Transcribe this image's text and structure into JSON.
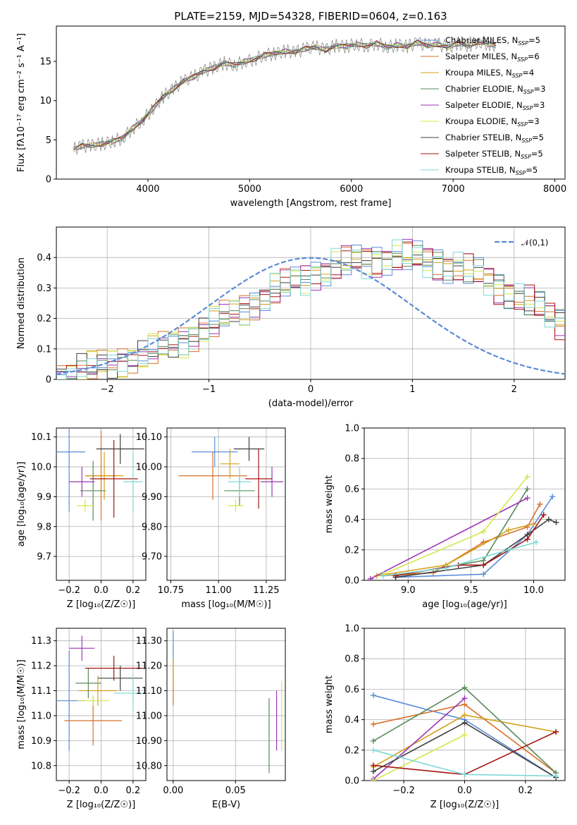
{
  "title": "PLATE=2159, MJD=54328, FIBERID=0604, z=0.163",
  "models": [
    {
      "name": "Chabrier MILES",
      "nssp": "5",
      "color": "#5b8bd9"
    },
    {
      "name": "Salpeter MILES",
      "nssp": "6",
      "color": "#d8702a"
    },
    {
      "name": "Kroupa MILES",
      "nssp": "4",
      "color": "#d4a017"
    },
    {
      "name": "Chabrier ELODIE",
      "nssp": "3",
      "color": "#5a8a5a"
    },
    {
      "name": "Salpeter ELODIE",
      "nssp": "3",
      "color": "#9c36b5"
    },
    {
      "name": "Kroupa ELODIE",
      "nssp": "3",
      "color": "#d4e84a"
    },
    {
      "name": "Chabrier STELIB",
      "nssp": "5",
      "color": "#404040"
    },
    {
      "name": "Salpeter STELIB",
      "nssp": "5",
      "color": "#a31515"
    },
    {
      "name": "Kroupa STELIB",
      "nssp": "5",
      "color": "#7fd8d8"
    }
  ],
  "chart_data": [
    {
      "id": "spectrum",
      "type": "line",
      "xlabel": "wavelength [Angstrom, rest frame]",
      "ylabel": "Flux [fλ10⁻¹⁷ erg cm⁻² s⁻¹ A⁻¹]",
      "xlim": [
        3100,
        8100
      ],
      "ylim": [
        0,
        19.5
      ],
      "xticks": [
        4000,
        5000,
        6000,
        7000,
        8000
      ],
      "yticks": [
        0,
        5,
        10,
        15
      ],
      "legend_position": "top-right",
      "data_color": "#808080",
      "x": [
        3270,
        3350,
        3450,
        3550,
        3650,
        3750,
        3850,
        3950,
        4050,
        4150,
        4250,
        4350,
        4450,
        4550,
        4650,
        4750,
        4850,
        4950,
        5050,
        5150,
        5250,
        5350,
        5450,
        5550,
        5650,
        5750,
        5850,
        5950,
        6050,
        6150,
        6250,
        6350,
        6450,
        6550,
        6650,
        6750,
        6850,
        6950,
        7050,
        7150,
        7250,
        7350,
        7420
      ],
      "y": [
        3.8,
        4.2,
        4.3,
        4.5,
        4.8,
        5.2,
        6.5,
        7.5,
        9.0,
        10.5,
        11.5,
        12.5,
        13.0,
        13.8,
        14.2,
        14.8,
        14.5,
        15.0,
        15.3,
        15.8,
        16.0,
        16.3,
        16.2,
        16.6,
        16.8,
        16.5,
        17.0,
        16.9,
        17.2,
        17.0,
        17.3,
        16.8,
        17.1,
        16.9,
        17.4,
        17.0,
        17.2,
        16.8,
        17.3,
        17.0,
        17.5,
        17.2,
        17.0
      ]
    },
    {
      "id": "residuals",
      "type": "histogram",
      "xlabel": "(data-model)/error",
      "ylabel": "Normed distribution",
      "xlim": [
        -2.5,
        2.5
      ],
      "ylim": [
        0,
        0.5
      ],
      "xticks": [
        -2,
        -1,
        0,
        1,
        2
      ],
      "yticks": [
        0.0,
        0.1,
        0.2,
        0.3,
        0.4
      ],
      "legend": "𝒩(0,1)",
      "legend_position": "top-right",
      "bin_width": 0.1,
      "bin_start": -2.5,
      "values": [
        0.015,
        0.025,
        0.03,
        0.035,
        0.045,
        0.055,
        0.065,
        0.075,
        0.08,
        0.09,
        0.1,
        0.115,
        0.13,
        0.15,
        0.165,
        0.18,
        0.2,
        0.22,
        0.235,
        0.255,
        0.27,
        0.29,
        0.305,
        0.32,
        0.335,
        0.35,
        0.36,
        0.37,
        0.38,
        0.385,
        0.39,
        0.395,
        0.4,
        0.4,
        0.4,
        0.395,
        0.39,
        0.385,
        0.375,
        0.365,
        0.355,
        0.34,
        0.325,
        0.305,
        0.29,
        0.27,
        0.25,
        0.23,
        0.21,
        0.19
      ]
    },
    {
      "id": "z-vs-age",
      "type": "errorbar",
      "xlabel": "Z [log₁₀(Z/Z☉)]",
      "ylabel": "age  [log₁₀(age/yr)]",
      "xlim": [
        -0.28,
        0.28
      ],
      "ylim": [
        9.62,
        10.13
      ],
      "xticks": [
        -0.2,
        0.0,
        0.2
      ],
      "yticks": [
        9.7,
        9.8,
        9.9,
        10.0,
        10.1
      ],
      "points": [
        {
          "x": -0.2,
          "y": 10.05,
          "xerr": 0.1,
          "yerr": 0.2
        },
        {
          "x": 0.0,
          "y": 9.97,
          "xerr": 0.1,
          "yerr": 0.15
        },
        {
          "x": 0.02,
          "y": 9.97,
          "xerr": 0.12,
          "yerr": 0.08
        },
        {
          "x": -0.05,
          "y": 9.92,
          "xerr": 0.08,
          "yerr": 0.1
        },
        {
          "x": -0.12,
          "y": 9.95,
          "xerr": 0.08,
          "yerr": 0.05
        },
        {
          "x": -0.1,
          "y": 9.87,
          "xerr": 0.05,
          "yerr": 0.02
        },
        {
          "x": 0.12,
          "y": 10.06,
          "xerr": 0.15,
          "yerr": 0.05
        },
        {
          "x": 0.08,
          "y": 9.96,
          "xerr": 0.15,
          "yerr": 0.13
        },
        {
          "x": 0.2,
          "y": 9.95,
          "xerr": 0.06,
          "yerr": 0.1
        }
      ]
    },
    {
      "id": "mass-vs-age",
      "type": "errorbar",
      "xlabel": "mass [log₁₀(M/M☉)]",
      "ylabel": "",
      "xlim": [
        10.73,
        11.35
      ],
      "ylim": [
        9.62,
        10.13
      ],
      "xticks": [
        10.75,
        11.0,
        11.25
      ],
      "yticks": [
        9.7,
        9.8,
        9.9,
        10.0,
        10.1
      ],
      "points": [
        {
          "x": 10.98,
          "y": 10.05,
          "xerr": 0.12,
          "yerr": 0.05
        },
        {
          "x": 10.97,
          "y": 9.97,
          "xerr": 0.18,
          "yerr": 0.08
        },
        {
          "x": 11.06,
          "y": 10.01,
          "xerr": 0.05,
          "yerr": 0.05
        },
        {
          "x": 11.11,
          "y": 9.92,
          "xerr": 0.08,
          "yerr": 0.05
        },
        {
          "x": 11.28,
          "y": 9.95,
          "xerr": 0.06,
          "yerr": 0.05
        },
        {
          "x": 11.09,
          "y": 9.87,
          "xerr": 0.04,
          "yerr": 0.02
        },
        {
          "x": 11.16,
          "y": 10.06,
          "xerr": 0.08,
          "yerr": 0.04
        },
        {
          "x": 11.21,
          "y": 9.96,
          "xerr": 0.07,
          "yerr": 0.1
        },
        {
          "x": 11.11,
          "y": 9.95,
          "xerr": 0.06,
          "yerr": 0.05
        }
      ]
    },
    {
      "id": "age-vs-massweight",
      "type": "line",
      "xlabel": "age  [log₁₀(age/yr)]",
      "ylabel": "mass weight",
      "xlim": [
        8.65,
        10.25
      ],
      "ylim": [
        0,
        1.0
      ],
      "xticks": [
        9.0,
        9.5,
        10.0
      ],
      "yticks": [
        0.0,
        0.2,
        0.4,
        0.6,
        0.8,
        1.0
      ],
      "series": [
        {
          "x": [
            8.9,
            9.6,
            9.95,
            10.15
          ],
          "y": [
            0.02,
            0.04,
            0.3,
            0.55
          ]
        },
        {
          "x": [
            8.8,
            9.2,
            9.6,
            9.95,
            10.05
          ],
          "y": [
            0.03,
            0.05,
            0.25,
            0.35,
            0.5
          ]
        },
        {
          "x": [
            8.75,
            9.3,
            9.8,
            10.0
          ],
          "y": [
            0.03,
            0.1,
            0.33,
            0.37
          ]
        },
        {
          "x": [
            8.9,
            9.6,
            9.95
          ],
          "y": [
            0.03,
            0.13,
            0.6
          ]
        },
        {
          "x": [
            8.7,
            9.95
          ],
          "y": [
            0.01,
            0.54
          ]
        },
        {
          "x": [
            8.8,
            9.6,
            9.95
          ],
          "y": [
            0.04,
            0.32,
            0.68
          ]
        },
        {
          "x": [
            8.9,
            9.6,
            9.95,
            10.12,
            10.18
          ],
          "y": [
            0.02,
            0.1,
            0.3,
            0.4,
            0.38
          ]
        },
        {
          "x": [
            8.9,
            9.4,
            9.6,
            9.95,
            10.08
          ],
          "y": [
            0.03,
            0.1,
            0.1,
            0.27,
            0.43
          ]
        },
        {
          "x": [
            8.8,
            9.3,
            9.8,
            10.02
          ],
          "y": [
            0.03,
            0.08,
            0.2,
            0.25
          ]
        }
      ]
    },
    {
      "id": "z-vs-mass",
      "type": "errorbar",
      "xlabel": "Z [log₁₀(Z/Z☉)]",
      "ylabel": "mass [log₁₀(M/M☉)]",
      "xlim": [
        -0.28,
        0.28
      ],
      "ylim": [
        10.74,
        11.35
      ],
      "xticks": [
        -0.2,
        0.0,
        0.2
      ],
      "yticks": [
        10.8,
        10.9,
        11.0,
        11.1,
        11.2,
        11.3
      ],
      "points": [
        {
          "x": -0.2,
          "y": 11.06,
          "xerr": 0.1,
          "yerr": 0.2
        },
        {
          "x": -0.05,
          "y": 10.98,
          "xerr": 0.18,
          "yerr": 0.1
        },
        {
          "x": -0.02,
          "y": 11.1,
          "xerr": 0.12,
          "yerr": 0.06
        },
        {
          "x": -0.08,
          "y": 11.13,
          "xerr": 0.08,
          "yerr": 0.06
        },
        {
          "x": -0.12,
          "y": 11.27,
          "xerr": 0.08,
          "yerr": 0.05
        },
        {
          "x": -0.05,
          "y": 11.06,
          "xerr": 0.1,
          "yerr": 0.02
        },
        {
          "x": 0.12,
          "y": 11.15,
          "xerr": 0.14,
          "yerr": 0.05
        },
        {
          "x": 0.08,
          "y": 11.19,
          "xerr": 0.18,
          "yerr": 0.05
        },
        {
          "x": 0.2,
          "y": 11.09,
          "xerr": 0.12,
          "yerr": 0.07
        }
      ]
    },
    {
      "id": "ebv-vs-mass",
      "type": "errorbar",
      "xlabel": "E(B-V)",
      "ylabel": "",
      "xlim": [
        -0.005,
        0.09
      ],
      "ylim": [
        10.74,
        11.35
      ],
      "xticks": [
        0.0,
        0.05
      ],
      "yticks": [
        10.8,
        10.9,
        11.0,
        11.1,
        11.2,
        11.3
      ],
      "points": [
        {
          "x": 0.0,
          "y": 11.24,
          "xerr": 0,
          "yerr": 0.1
        },
        {
          "x": 0.0,
          "y": 11.1,
          "xerr": 0,
          "yerr": 0.06
        },
        {
          "x": 0.0,
          "y": 11.18,
          "xerr": 0,
          "yerr": 0.05
        },
        {
          "x": 0.077,
          "y": 10.92,
          "xerr": 0,
          "yerr": 0.15
        },
        {
          "x": 0.083,
          "y": 10.98,
          "xerr": 0,
          "yerr": 0.12
        },
        {
          "x": 0.087,
          "y": 11.0,
          "xerr": 0,
          "yerr": 0.14
        }
      ]
    },
    {
      "id": "z-vs-massweight",
      "type": "line",
      "xlabel": "Z [log₁₀(Z/Z☉)]",
      "ylabel": "mass weight",
      "xlim": [
        -0.33,
        0.33
      ],
      "ylim": [
        0,
        1.0
      ],
      "xticks": [
        -0.2,
        0.0,
        0.2
      ],
      "yticks": [
        0.0,
        0.2,
        0.4,
        0.6,
        0.8,
        1.0
      ],
      "series": [
        {
          "x": [
            -0.3,
            0.0,
            0.3
          ],
          "y": [
            0.56,
            0.4,
            0.02
          ]
        },
        {
          "x": [
            -0.3,
            0.0,
            0.3
          ],
          "y": [
            0.37,
            0.5,
            0.05
          ]
        },
        {
          "x": [
            -0.3,
            0.0,
            0.3
          ],
          "y": [
            0.09,
            0.43,
            0.32
          ]
        },
        {
          "x": [
            -0.3,
            0.0,
            0.3
          ],
          "y": [
            0.26,
            0.61,
            0.05
          ]
        },
        {
          "x": [
            -0.3,
            0.0
          ],
          "y": [
            0.01,
            0.54
          ]
        },
        {
          "x": [
            -0.3,
            0.0
          ],
          "y": [
            0.0,
            0.3
          ]
        },
        {
          "x": [
            -0.3,
            0.0,
            0.3
          ],
          "y": [
            0.06,
            0.38,
            0.02
          ]
        },
        {
          "x": [
            -0.3,
            0.0,
            0.3
          ],
          "y": [
            0.1,
            0.04,
            0.32
          ]
        },
        {
          "x": [
            -0.3,
            0.0,
            0.3
          ],
          "y": [
            0.2,
            0.04,
            0.03
          ]
        }
      ]
    }
  ]
}
